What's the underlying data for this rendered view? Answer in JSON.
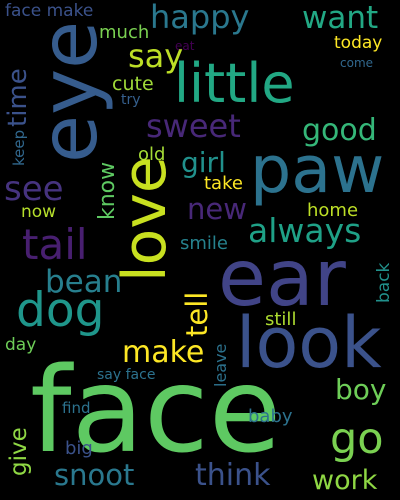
{
  "words": {
    "face_make": {
      "text": "face make",
      "color": "#3b528b"
    },
    "much": {
      "text": "much",
      "color": "#7ad151"
    },
    "eat": {
      "text": "eat",
      "color": "#440154"
    },
    "happy": {
      "text": "happy",
      "color": "#2a788e"
    },
    "want": {
      "text": "want",
      "color": "#22a884"
    },
    "eye": {
      "text": "eye",
      "color": "#365c8d"
    },
    "say": {
      "text": "say",
      "color": "#bddf26"
    },
    "today": {
      "text": "today",
      "color": "#fde725"
    },
    "come": {
      "text": "come",
      "color": "#31688e"
    },
    "little": {
      "text": "little",
      "color": "#22a884"
    },
    "cute": {
      "text": "cute",
      "color": "#a0da39"
    },
    "try": {
      "text": "try",
      "color": "#355f8d"
    },
    "time": {
      "text": "time",
      "color": "#3b528b"
    },
    "keep": {
      "text": "keep",
      "color": "#31688e"
    },
    "sweet": {
      "text": "sweet",
      "color": "#482878"
    },
    "good": {
      "text": "good",
      "color": "#35b779"
    },
    "paw": {
      "text": "paw",
      "color": "#2c728e"
    },
    "see": {
      "text": "see",
      "color": "#46337f"
    },
    "know": {
      "text": "know",
      "color": "#5ec962"
    },
    "girl": {
      "text": "girl",
      "color": "#21918c"
    },
    "old": {
      "text": "old",
      "color": "#a5db36"
    },
    "take": {
      "text": "take",
      "color": "#fde725"
    },
    "new": {
      "text": "new",
      "color": "#482878"
    },
    "home": {
      "text": "home",
      "color": "#bddf26"
    },
    "now": {
      "text": "now",
      "color": "#b5de2b"
    },
    "love": {
      "text": "love",
      "color": "#c8e020"
    },
    "tail": {
      "text": "tail",
      "color": "#481f70"
    },
    "always": {
      "text": "always",
      "color": "#1fa187"
    },
    "smile": {
      "text": "smile",
      "color": "#26828e"
    },
    "ear": {
      "text": "ear",
      "color": "#414487"
    },
    "bean": {
      "text": "bean",
      "color": "#277f8e"
    },
    "dog": {
      "text": "dog",
      "color": "#1f968b"
    },
    "tell": {
      "text": "tell",
      "color": "#fde725"
    },
    "back": {
      "text": "back",
      "color": "#21918c"
    },
    "look": {
      "text": "look",
      "color": "#3b528b"
    },
    "leave": {
      "text": "leave",
      "color": "#2c728e"
    },
    "still": {
      "text": "still",
      "color": "#addc30"
    },
    "day": {
      "text": "day",
      "color": "#6ece58"
    },
    "make": {
      "text": "make",
      "color": "#fde725"
    },
    "say_face": {
      "text": "say face",
      "color": "#2c728e"
    },
    "boy": {
      "text": "boy",
      "color": "#6ece58"
    },
    "face": {
      "text": "face",
      "color": "#5ec962"
    },
    "find": {
      "text": "find",
      "color": "#2c728e"
    },
    "baby": {
      "text": "baby",
      "color": "#2c728e"
    },
    "give": {
      "text": "give",
      "color": "#8fd744"
    },
    "go": {
      "text": "go",
      "color": "#7ad151"
    },
    "big": {
      "text": "big",
      "color": "#3b528b"
    },
    "snoot": {
      "text": "snoot",
      "color": "#2a788e"
    },
    "think": {
      "text": "think",
      "color": "#3b528b"
    },
    "work": {
      "text": "work",
      "color": "#8fd744"
    }
  }
}
